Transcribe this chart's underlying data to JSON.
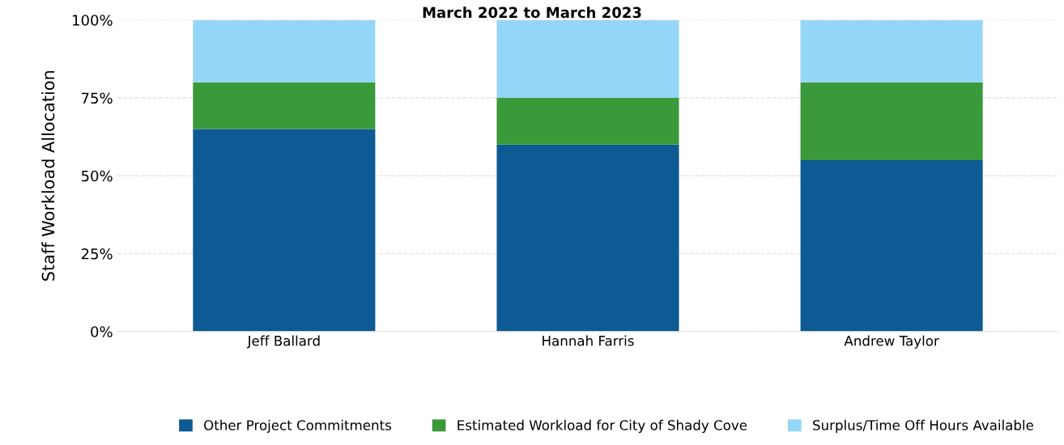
{
  "chart_data": {
    "type": "bar",
    "subtitle": "March 2022 to March 2023",
    "ylabel": "Staff Workload Allocation",
    "categories": [
      "Jeff Ballard",
      "Hannah Farris",
      "Andrew Taylor"
    ],
    "stacked": true,
    "series": [
      {
        "name": "Other Project Commitments",
        "color": "#0d5a94",
        "values": [
          65,
          60,
          55
        ]
      },
      {
        "name": "Estimated Workload for City of Shady Cove",
        "color": "#3a9a3a",
        "values": [
          15,
          15,
          25
        ]
      },
      {
        "name": "Surplus/Time Off Hours Available",
        "color": "#94d6f8",
        "values": [
          20,
          25,
          20
        ]
      }
    ],
    "ylim": [
      0,
      100
    ],
    "yticks": [
      {
        "value": 0,
        "label": "0%"
      },
      {
        "value": 25,
        "label": "25%"
      },
      {
        "value": 50,
        "label": "50%"
      },
      {
        "value": 75,
        "label": "75%"
      },
      {
        "value": 100,
        "label": "100%"
      }
    ],
    "grid": "y",
    "legend": "bottom"
  }
}
